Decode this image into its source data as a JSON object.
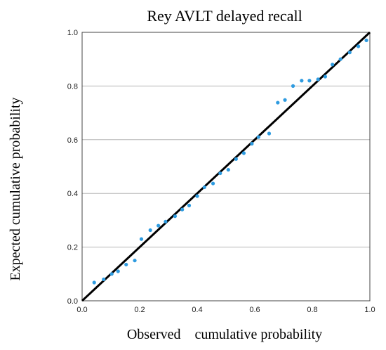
{
  "chart_data": {
    "type": "scatter",
    "title": "Rey AVLT delayed recall",
    "xlabel": "Observed    cumulative probability",
    "ylabel": "Expected cumulative probability",
    "xlim": [
      0.0,
      1.0
    ],
    "ylim": [
      0.0,
      1.0
    ],
    "xticks": [
      "0.0",
      "0.2",
      "0.4",
      "0.6",
      "0.8",
      "1.0"
    ],
    "yticks": [
      "0.0",
      "0.2",
      "0.4",
      "0.6",
      "0.8",
      "1.0"
    ],
    "grid": "horizontal",
    "reference_line": {
      "from": [
        0.0,
        0.0
      ],
      "to": [
        1.0,
        1.0
      ],
      "color": "#000000"
    },
    "point_color": "#2e9be0",
    "points": [
      [
        0.042,
        0.068
      ],
      [
        0.075,
        0.08
      ],
      [
        0.103,
        0.1
      ],
      [
        0.125,
        0.11
      ],
      [
        0.153,
        0.135
      ],
      [
        0.183,
        0.15
      ],
      [
        0.206,
        0.23
      ],
      [
        0.237,
        0.263
      ],
      [
        0.265,
        0.28
      ],
      [
        0.29,
        0.295
      ],
      [
        0.323,
        0.315
      ],
      [
        0.348,
        0.34
      ],
      [
        0.372,
        0.355
      ],
      [
        0.4,
        0.39
      ],
      [
        0.425,
        0.423
      ],
      [
        0.455,
        0.437
      ],
      [
        0.48,
        0.475
      ],
      [
        0.508,
        0.488
      ],
      [
        0.535,
        0.528
      ],
      [
        0.562,
        0.55
      ],
      [
        0.59,
        0.585
      ],
      [
        0.613,
        0.61
      ],
      [
        0.65,
        0.623
      ],
      [
        0.68,
        0.738
      ],
      [
        0.705,
        0.748
      ],
      [
        0.733,
        0.8
      ],
      [
        0.763,
        0.82
      ],
      [
        0.79,
        0.82
      ],
      [
        0.82,
        0.825
      ],
      [
        0.845,
        0.835
      ],
      [
        0.87,
        0.88
      ],
      [
        0.898,
        0.9
      ],
      [
        0.93,
        0.925
      ],
      [
        0.96,
        0.948
      ],
      [
        0.988,
        0.97
      ]
    ]
  }
}
